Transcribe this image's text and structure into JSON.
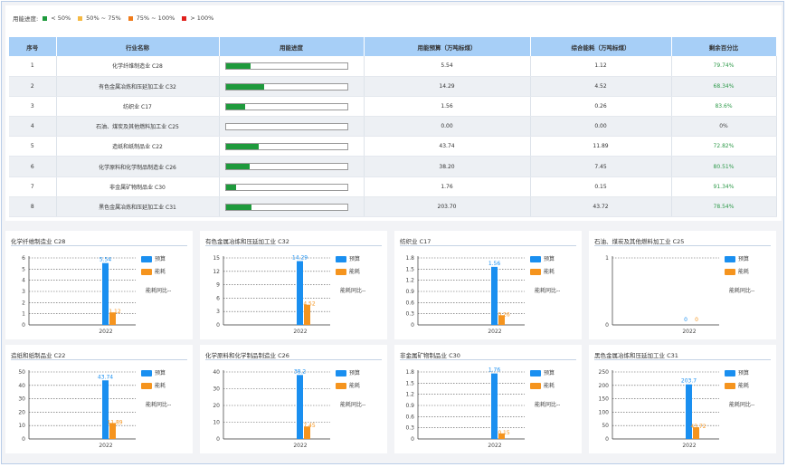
{
  "legend": {
    "label": "用能进度:",
    "items": [
      {
        "text": "< 50%",
        "color": "#1e9a3c"
      },
      {
        "text": "50% ~ 75%",
        "color": "#f5b942"
      },
      {
        "text": "75% ~ 100%",
        "color": "#f07b1a"
      },
      {
        "text": "> 100%",
        "color": "#e0201c"
      }
    ]
  },
  "table": {
    "headers": [
      "序号",
      "行业名称",
      "用能进度",
      "用能预算（万吨标煤）",
      "综合能耗（万吨标煤）",
      "剩余百分比"
    ],
    "rows": [
      {
        "no": "1",
        "name": "化学纤维制造业 C28",
        "progress": 0.2026,
        "budget": "5.54",
        "consumption": "1.12",
        "remaining": "79.74%"
      },
      {
        "no": "2",
        "name": "有色金属冶炼和压延加工业 C32",
        "progress": 0.3166,
        "budget": "14.29",
        "consumption": "4.52",
        "remaining": "68.34%"
      },
      {
        "no": "3",
        "name": "纺织业 C17",
        "progress": 0.164,
        "budget": "1.56",
        "consumption": "0.26",
        "remaining": "83.6%"
      },
      {
        "no": "4",
        "name": "石油、煤炭及其他燃料加工业 C25",
        "progress": 0,
        "budget": "0.00",
        "consumption": "0.00",
        "remaining": "0%"
      },
      {
        "no": "5",
        "name": "造纸和纸制品业 C22",
        "progress": 0.2718,
        "budget": "43.74",
        "consumption": "11.89",
        "remaining": "72.82%"
      },
      {
        "no": "6",
        "name": "化学原料和化学制品制造业 C26",
        "progress": 0.1949,
        "budget": "38.20",
        "consumption": "7.45",
        "remaining": "80.51%"
      },
      {
        "no": "7",
        "name": "非金属矿物制品业 C30",
        "progress": 0.0866,
        "budget": "1.76",
        "consumption": "0.15",
        "remaining": "91.34%"
      },
      {
        "no": "8",
        "name": "黑色金属冶炼和压延加工业 C31",
        "progress": 0.2146,
        "budget": "203.70",
        "consumption": "43.72",
        "remaining": "78.54%"
      }
    ]
  },
  "chart_legend": {
    "budget": "预算",
    "consumption": "能耗",
    "yoy": "能耗同比--"
  },
  "colors": {
    "budget": "#1a8ff0",
    "consumption": "#f5941e",
    "progress": "#1e9a3c"
  },
  "chart_data": [
    {
      "type": "bar",
      "title": "化学纤维制造业 C28",
      "categories": [
        "2022"
      ],
      "series": [
        {
          "name": "预算",
          "values": [
            5.54
          ]
        },
        {
          "name": "能耗",
          "values": [
            1.12
          ]
        }
      ],
      "labels": [
        "5.54",
        "1.12"
      ],
      "yticks": [
        "0",
        "1",
        "2",
        "3",
        "4",
        "5",
        "6"
      ],
      "ylim": [
        0,
        6
      ]
    },
    {
      "type": "bar",
      "title": "有色金属冶炼和压延加工业 C32",
      "categories": [
        "2022"
      ],
      "series": [
        {
          "name": "预算",
          "values": [
            14.29
          ]
        },
        {
          "name": "能耗",
          "values": [
            4.52
          ]
        }
      ],
      "labels": [
        "14.29",
        "4.52"
      ],
      "yticks": [
        "0",
        "3",
        "6",
        "9",
        "12",
        "15"
      ],
      "ylim": [
        0,
        15
      ]
    },
    {
      "type": "bar",
      "title": "纺织业 C17",
      "categories": [
        "2022"
      ],
      "series": [
        {
          "name": "预算",
          "values": [
            1.56
          ]
        },
        {
          "name": "能耗",
          "values": [
            0.26
          ]
        }
      ],
      "labels": [
        "1.56",
        "0.26"
      ],
      "yticks": [
        "0",
        "0.3",
        "0.6",
        "0.9",
        "1.2",
        "1.5",
        "1.8"
      ],
      "ylim": [
        0,
        1.8
      ]
    },
    {
      "type": "bar",
      "title": "石油、煤炭及其他燃料加工业 C25",
      "categories": [
        "2022"
      ],
      "series": [
        {
          "name": "预算",
          "values": [
            0
          ]
        },
        {
          "name": "能耗",
          "values": [
            0
          ]
        }
      ],
      "labels": [
        "0",
        "0"
      ],
      "yticks": [
        "0",
        "1"
      ],
      "ylim": [
        0,
        1
      ]
    },
    {
      "type": "bar",
      "title": "造纸和纸制品业 C22",
      "categories": [
        "2022"
      ],
      "series": [
        {
          "name": "预算",
          "values": [
            43.74
          ]
        },
        {
          "name": "能耗",
          "values": [
            11.89
          ]
        }
      ],
      "labels": [
        "43.74",
        "11.89"
      ],
      "yticks": [
        "0",
        "10",
        "20",
        "30",
        "40",
        "50"
      ],
      "ylim": [
        0,
        50
      ]
    },
    {
      "type": "bar",
      "title": "化学原料和化学制品制造业 C26",
      "categories": [
        "2022"
      ],
      "series": [
        {
          "name": "预算",
          "values": [
            38.2
          ]
        },
        {
          "name": "能耗",
          "values": [
            7.45
          ]
        }
      ],
      "labels": [
        "38.2",
        "7.45"
      ],
      "yticks": [
        "0",
        "10",
        "20",
        "30",
        "40"
      ],
      "ylim": [
        0,
        40
      ]
    },
    {
      "type": "bar",
      "title": "非金属矿物制品业 C30",
      "categories": [
        "2022"
      ],
      "series": [
        {
          "name": "预算",
          "values": [
            1.76
          ]
        },
        {
          "name": "能耗",
          "values": [
            0.15
          ]
        }
      ],
      "labels": [
        "1.76",
        "0.15"
      ],
      "yticks": [
        "0",
        "0.3",
        "0.6",
        "0.9",
        "1.2",
        "1.5",
        "1.8"
      ],
      "ylim": [
        0,
        1.8
      ]
    },
    {
      "type": "bar",
      "title": "黑色金属冶炼和压延加工业 C31",
      "categories": [
        "2022"
      ],
      "series": [
        {
          "name": "预算",
          "values": [
            203.7
          ]
        },
        {
          "name": "能耗",
          "values": [
            43.72
          ]
        }
      ],
      "labels": [
        "203.7",
        "43.72"
      ],
      "yticks": [
        "0",
        "50",
        "100",
        "150",
        "200",
        "250"
      ],
      "ylim": [
        0,
        250
      ]
    }
  ]
}
